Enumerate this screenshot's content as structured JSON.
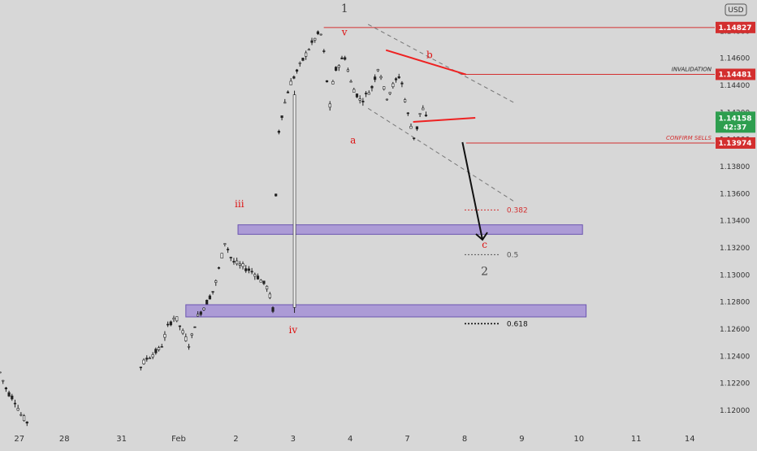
{
  "currency_badge": "USD",
  "countdown": "42:37",
  "chart_data": {
    "type": "candlestick",
    "instrument_currency": "USD",
    "x_ticks": [
      "27",
      "28",
      "31",
      "Feb",
      "2",
      "3",
      "4",
      "7",
      "8",
      "9",
      "10",
      "11",
      "14"
    ],
    "y_ticks": [
      "1.14800",
      "1.14600",
      "1.14400",
      "1.14200",
      "1.14000",
      "1.13800",
      "1.13600",
      "1.13400",
      "1.13200",
      "1.13000",
      "1.12800",
      "1.12600",
      "1.12400",
      "1.12200",
      "1.12000"
    ],
    "ylim": [
      1.1188,
      1.1503
    ],
    "price_levels": [
      {
        "value": 1.14827,
        "label": "1.14827",
        "color": "#d32f2f"
      },
      {
        "value": 1.14481,
        "label": "1.14481",
        "color": "#d32f2f",
        "note": "INVALIDATION",
        "note_color": "#222"
      },
      {
        "value": 1.13974,
        "label": "1.13974",
        "color": "#d32f2f",
        "note": "CONFIRM SELLS",
        "note_color": "#d32f2f"
      }
    ],
    "current_price": {
      "value": 1.14158,
      "label": "1.14158",
      "color": "#2e9e4f"
    },
    "zones": [
      {
        "from": 1.133,
        "to": 1.1337,
        "color": "#a590d6"
      },
      {
        "from": 1.1269,
        "to": 1.1278,
        "color": "#a590d6"
      }
    ],
    "fib_levels": [
      {
        "value": 1.1348,
        "label": "0.382",
        "color": "#d32f2f"
      },
      {
        "value": 1.1315,
        "label": "0.5",
        "color": "#555"
      },
      {
        "value": 1.1264,
        "label": "0.618",
        "color": "#111"
      }
    ],
    "wave_labels": [
      {
        "text": "1",
        "color": "#444"
      },
      {
        "text": "v",
        "color": "#d11"
      },
      {
        "text": "a",
        "color": "#d11"
      },
      {
        "text": "b",
        "color": "#d11"
      },
      {
        "text": "iii",
        "color": "#d11"
      },
      {
        "text": "iv",
        "color": "#d11"
      },
      {
        "text": "c",
        "color": "#d11"
      },
      {
        "text": "2",
        "color": "#444"
      }
    ],
    "path_points": [
      [
        0.0,
        1.1228
      ],
      [
        0.01,
        1.1214
      ],
      [
        0.02,
        1.1208
      ],
      [
        0.03,
        1.1196
      ],
      [
        0.04,
        1.119
      ],
      [
        0.175,
        1.119
      ],
      [
        0.19,
        1.1228
      ],
      [
        0.205,
        1.1238
      ],
      [
        0.225,
        1.1246
      ],
      [
        0.235,
        1.1262
      ],
      [
        0.245,
        1.127
      ],
      [
        0.255,
        1.1258
      ],
      [
        0.265,
        1.1248
      ],
      [
        0.275,
        1.1268
      ],
      [
        0.285,
        1.1276
      ],
      [
        0.3,
        1.129
      ],
      [
        0.315,
        1.1325
      ],
      [
        0.325,
        1.131
      ],
      [
        0.34,
        1.1306
      ],
      [
        0.355,
        1.1302
      ],
      [
        0.375,
        1.129
      ],
      [
        0.382,
        1.1274
      ],
      [
        0.388,
        1.14
      ],
      [
        0.395,
        1.142
      ],
      [
        0.405,
        1.144
      ],
      [
        0.42,
        1.1455
      ],
      [
        0.435,
        1.147
      ],
      [
        0.448,
        1.148
      ],
      [
        0.452,
        1.147
      ],
      [
        0.458,
        1.144
      ],
      [
        0.46,
        1.1418
      ],
      [
        0.468,
        1.145
      ],
      [
        0.482,
        1.1462
      ],
      [
        0.492,
        1.144
      ],
      [
        0.505,
        1.1428
      ],
      [
        0.52,
        1.1438
      ],
      [
        0.53,
        1.1455
      ],
      [
        0.54,
        1.143
      ],
      [
        0.55,
        1.144
      ],
      [
        0.56,
        1.1448
      ],
      [
        0.57,
        1.142
      ],
      [
        0.58,
        1.14
      ],
      [
        0.59,
        1.1425
      ],
      [
        0.6,
        1.141
      ]
    ]
  }
}
